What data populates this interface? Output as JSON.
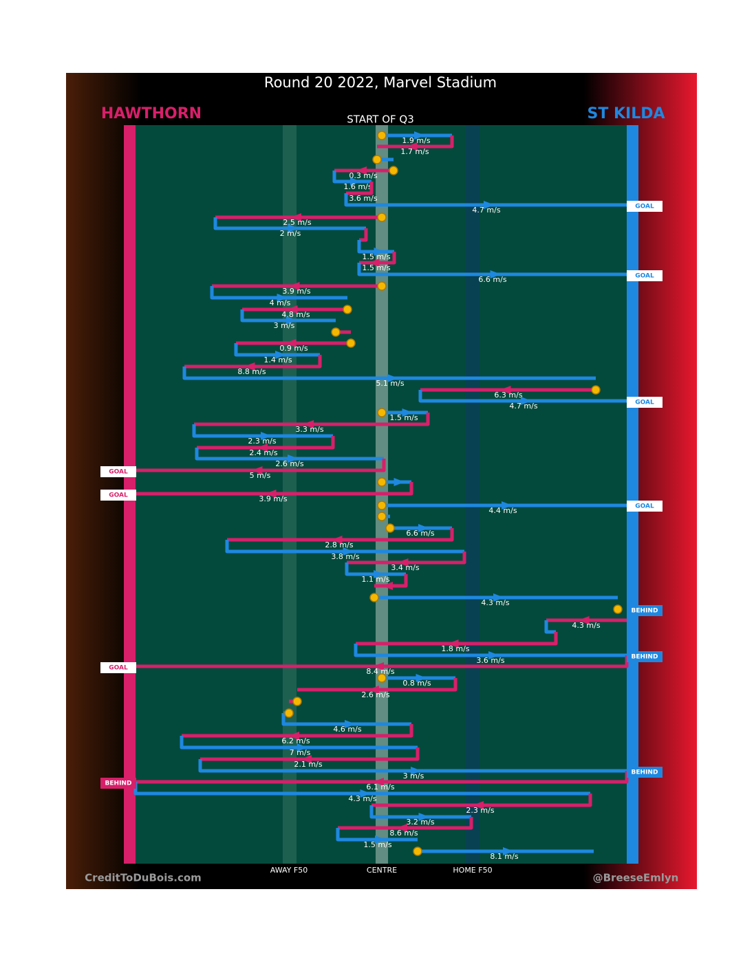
{
  "title": "Round 20 2022, Marvel Stadium",
  "home_team": "HAWTHORN",
  "away_team": "ST KILDA",
  "subtitle": "START OF Q3",
  "field_labels": [
    "AWAY F50",
    "CENTRE",
    "HOME F50"
  ],
  "credits": [
    "CreditToDuBois.com",
    "@BreeseEmlyn"
  ],
  "speeds": [
    "1.9 m/s",
    "1.7 m/s",
    "0.3 m/s",
    "1.6 m/s",
    "3.6 m/s",
    "4.7 m/s",
    "2.5 m/s",
    "2 m/s",
    "1.5 m/s",
    "1.5 m/s",
    "6.6 m/s",
    "3.9 m/s",
    "4 m/s",
    "4.8 m/s",
    "3 m/s",
    "0.9 m/s",
    "1.4 m/s",
    "8.8 m/s",
    "5.1 m/s",
    "6.3 m/s",
    "4.7 m/s",
    "1.5 m/s",
    "3.3 m/s",
    "2.3 m/s",
    "2.4 m/s",
    "2.6 m/s",
    "5 m/s",
    "3.9 m/s",
    "4.4 m/s",
    "6.6 m/s",
    "2.8 m/s",
    "3.8 m/s",
    "3.4 m/s",
    "1.1 m/s",
    "4.3 m/s",
    "4.3 m/s",
    "1.8 m/s",
    "3.6 m/s",
    "8.4 m/s",
    "0.8 m/s",
    "2.6 m/s",
    "4.6 m/s",
    "6.2 m/s",
    "7 m/s",
    "2.1 m/s",
    "3 m/s",
    "6.1 m/s",
    "4.3 m/s",
    "2.3 m/s",
    "3.2 m/s",
    "8.6 m/s",
    "1.5 m/s",
    "8.1 m/s"
  ],
  "events": [
    "GOAL",
    "GOAL",
    "GOAL",
    "GOAL",
    "GOAL",
    "GOAL",
    "BEHIND",
    "BEHIND",
    "GOAL",
    "BEHIND",
    "BEHIND"
  ]
}
